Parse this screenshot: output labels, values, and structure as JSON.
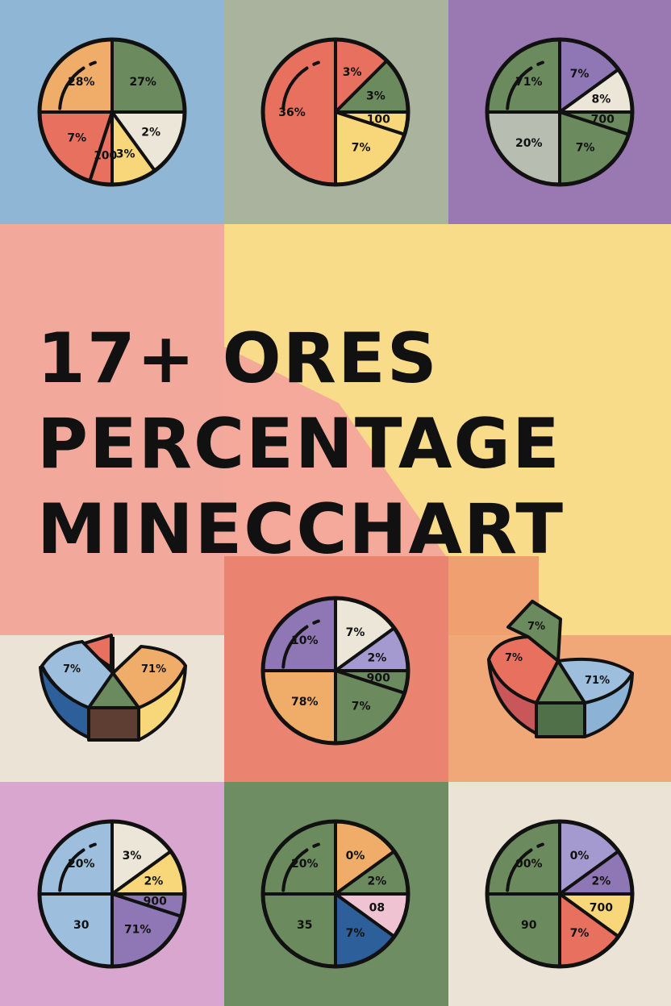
{
  "title": {
    "line1": "17+ ORES",
    "line2": "PERCENTAGE",
    "line3": "MINECCHART"
  },
  "colors": {
    "outline": "#111111",
    "text": "#111111",
    "dark_green": "#6b8a5e",
    "cream": "#ece6d8",
    "yellow": "#f8d77a",
    "orange": "#f0ad6a",
    "red": "#e8705f",
    "purple": "#8f77b5",
    "lavender": "#a59ad0",
    "light_blue": "#9dbedc",
    "gray": "#b8bdb2",
    "pink": "#f0c3d2",
    "navy": "#2d5f9b",
    "dark_brown": "#5e3d33",
    "bg_blue": "#8fb6d4",
    "bg_sage": "#a9b39d",
    "bg_purple": "#9a79b3",
    "bg_pink": "#f2a99c",
    "bg_yellow": "#f9dc8a",
    "bg_salmon": "#ea8470",
    "bg_peach": "#f0a879",
    "bg_cream": "#ebe4d6",
    "bg_lilac": "#d8a6cf",
    "bg_green": "#6f8d63"
  },
  "chart_data": [
    {
      "type": "pie",
      "panel": "top-left",
      "slices": [
        {
          "label": "27%",
          "value": 25,
          "color": "dark_green"
        },
        {
          "label": "2%",
          "value": 15,
          "color": "cream"
        },
        {
          "label": "3%",
          "value": 10,
          "color": "yellow"
        },
        {
          "label": "100",
          "value": 5,
          "color": "red"
        },
        {
          "label": "7%",
          "value": 20,
          "color": "red"
        },
        {
          "label": "28%",
          "value": 25,
          "color": "orange"
        }
      ]
    },
    {
      "type": "pie",
      "panel": "top-center",
      "slices": [
        {
          "label": "3%",
          "value": 12.5,
          "color": "red"
        },
        {
          "label": "3%",
          "value": 12.5,
          "color": "dark_green"
        },
        {
          "label": "100",
          "value": 5,
          "color": "yellow"
        },
        {
          "label": "7%",
          "value": 20,
          "color": "yellow"
        },
        {
          "label": "36%",
          "value": 50,
          "color": "red"
        }
      ]
    },
    {
      "type": "pie",
      "panel": "top-right",
      "slices": [
        {
          "label": "7%",
          "value": 15,
          "color": "purple"
        },
        {
          "label": "8%",
          "value": 10,
          "color": "cream"
        },
        {
          "label": "700",
          "value": 5,
          "color": "dark_green"
        },
        {
          "label": "7%",
          "value": 20,
          "color": "dark_green"
        },
        {
          "label": "20%",
          "value": 25,
          "color": "gray"
        },
        {
          "label": "71%",
          "value": 25,
          "color": "dark_green"
        }
      ]
    },
    {
      "type": "pie",
      "panel": "middle-center",
      "slices": [
        {
          "label": "7%",
          "value": 15,
          "color": "cream"
        },
        {
          "label": "2%",
          "value": 10,
          "color": "lavender"
        },
        {
          "label": "900",
          "value": 5,
          "color": "dark_green"
        },
        {
          "label": "7%",
          "value": 20,
          "color": "dark_green"
        },
        {
          "label": "78%",
          "value": 25,
          "color": "orange"
        },
        {
          "label": "10%",
          "value": 25,
          "color": "purple"
        }
      ]
    },
    {
      "type": "pie",
      "panel": "middle-left",
      "slices": [
        {
          "label": "7%",
          "value": 40,
          "color": "light_blue"
        },
        {
          "label": "71%",
          "value": 35,
          "color": "orange"
        },
        {
          "label": "",
          "value": 25,
          "color": "dark_green"
        }
      ]
    },
    {
      "type": "pie",
      "panel": "middle-right",
      "slices": [
        {
          "label": "7%",
          "value": 15,
          "color": "dark_green"
        },
        {
          "label": "7%",
          "value": 35,
          "color": "red"
        },
        {
          "label": "71%",
          "value": 35,
          "color": "light_blue"
        },
        {
          "label": "",
          "value": 15,
          "color": "dark_green"
        }
      ]
    },
    {
      "type": "pie",
      "panel": "bottom-left",
      "slices": [
        {
          "label": "3%",
          "value": 15,
          "color": "cream"
        },
        {
          "label": "2%",
          "value": 10,
          "color": "yellow"
        },
        {
          "label": "900",
          "value": 5,
          "color": "purple"
        },
        {
          "label": "71%",
          "value": 20,
          "color": "purple"
        },
        {
          "label": "30",
          "value": 25,
          "color": "light_blue"
        },
        {
          "label": "20%",
          "value": 25,
          "color": "light_blue"
        }
      ]
    },
    {
      "type": "pie",
      "panel": "bottom-center",
      "slices": [
        {
          "label": "0%",
          "value": 15,
          "color": "orange"
        },
        {
          "label": "2%",
          "value": 10,
          "color": "dark_green"
        },
        {
          "label": "08",
          "value": 10,
          "color": "pink"
        },
        {
          "label": "7%",
          "value": 15,
          "color": "navy"
        },
        {
          "label": "35",
          "value": 25,
          "color": "dark_green"
        },
        {
          "label": "20%",
          "value": 25,
          "color": "dark_green"
        }
      ]
    },
    {
      "type": "pie",
      "panel": "bottom-right",
      "slices": [
        {
          "label": "0%",
          "value": 15,
          "color": "lavender"
        },
        {
          "label": "2%",
          "value": 10,
          "color": "purple"
        },
        {
          "label": "700",
          "value": 10,
          "color": "yellow"
        },
        {
          "label": "7%",
          "value": 15,
          "color": "red"
        },
        {
          "label": "90",
          "value": 25,
          "color": "dark_green"
        },
        {
          "label": "00%",
          "value": 25,
          "color": "dark_green"
        }
      ]
    }
  ]
}
